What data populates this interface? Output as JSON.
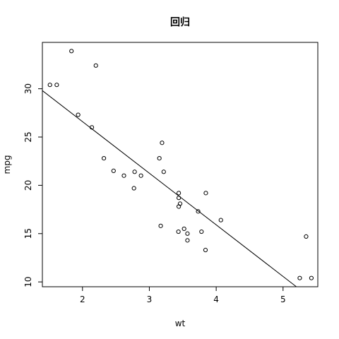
{
  "chart_data": {
    "type": "scatter",
    "title": "回归",
    "xlabel": "wt",
    "ylabel": "mpg",
    "xlim": [
      1.4,
      5.52
    ],
    "ylim": [
      9.5,
      34.8
    ],
    "x_ticks": [
      2,
      3,
      4,
      5
    ],
    "y_ticks": [
      10,
      15,
      20,
      25,
      30
    ],
    "grid": false,
    "legend": "none",
    "points": {
      "x": [
        1.513,
        1.615,
        1.835,
        1.935,
        2.14,
        2.2,
        2.32,
        2.465,
        2.62,
        2.77,
        2.78,
        2.875,
        3.15,
        3.17,
        3.19,
        3.215,
        3.435,
        3.44,
        3.44,
        3.44,
        3.46,
        3.52,
        3.57,
        3.57,
        3.73,
        3.78,
        3.84,
        3.845,
        4.07,
        5.25,
        5.345,
        5.424
      ],
      "y": [
        30.4,
        30.4,
        33.9,
        27.3,
        26.0,
        32.4,
        22.8,
        21.5,
        21.0,
        19.7,
        21.4,
        21.0,
        22.8,
        15.8,
        24.4,
        21.4,
        15.2,
        18.7,
        17.8,
        19.2,
        18.1,
        15.5,
        15.0,
        14.3,
        17.3,
        15.2,
        13.3,
        19.2,
        16.4,
        10.4,
        14.7,
        10.4
      ]
    },
    "regression": {
      "intercept": 37.285,
      "slope": -5.344
    },
    "colors": {
      "points": "#000000",
      "line": "#000000",
      "axes": "#000000",
      "background": "#ffffff"
    }
  }
}
